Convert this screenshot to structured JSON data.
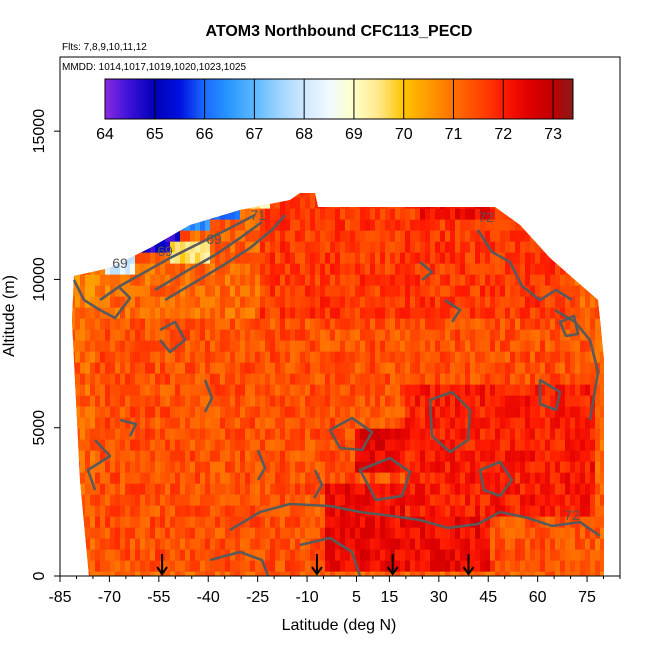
{
  "chart_data": {
    "type": "heatmap",
    "title": "ATOM3 Northbound CFC113_PECD",
    "subtitle_flights": "Flts: 7,8,9,10,11,12",
    "subtitle_dates": "MMDD: 1014,1017,1019,1020,1023,1025",
    "xlabel": "Latitude (deg N)",
    "ylabel": "Altitude (m)",
    "xlim": [
      -85,
      85
    ],
    "ylim": [
      0,
      17500
    ],
    "x_ticks": [
      -85,
      -70,
      -55,
      -40,
      -25,
      -10,
      5,
      15,
      30,
      45,
      60,
      75
    ],
    "y_ticks": [
      0,
      5000,
      10000,
      15000
    ],
    "colorbar": {
      "min": 64,
      "max": 73.4,
      "ticks": [
        "64",
        "65",
        "66",
        "67",
        "68",
        "69",
        "70",
        "71",
        "72",
        "73"
      ],
      "stops": [
        {
          "v": 64.0,
          "c": "#8a2be2"
        },
        {
          "v": 64.5,
          "c": "#3a10d8"
        },
        {
          "v": 65.0,
          "c": "#0000b8"
        },
        {
          "v": 65.5,
          "c": "#0010e0"
        },
        {
          "v": 66.0,
          "c": "#1a6aff"
        },
        {
          "v": 66.5,
          "c": "#2a98ff"
        },
        {
          "v": 67.0,
          "c": "#5cb8ff"
        },
        {
          "v": 67.5,
          "c": "#9dd4ff"
        },
        {
          "v": 68.0,
          "c": "#cfe8ff"
        },
        {
          "v": 68.5,
          "c": "#f0faff"
        },
        {
          "v": 69.0,
          "c": "#ffffc8"
        },
        {
          "v": 69.5,
          "c": "#ffe88a"
        },
        {
          "v": 70.0,
          "c": "#ffc400"
        },
        {
          "v": 70.5,
          "c": "#ff9a00"
        },
        {
          "v": 71.0,
          "c": "#ff7000"
        },
        {
          "v": 71.5,
          "c": "#ff4800"
        },
        {
          "v": 72.0,
          "c": "#ff1a00"
        },
        {
          "v": 72.5,
          "c": "#e00000"
        },
        {
          "v": 73.0,
          "c": "#c00000"
        },
        {
          "v": 73.4,
          "c": "#8b1a1a"
        }
      ]
    },
    "contour_labels": [
      "69",
      "69",
      "69",
      "71",
      "72",
      "72"
    ],
    "regions": [
      {
        "x0": -75,
        "x1": 78,
        "y0": 0,
        "y1": 8500,
        "v": 71.4
      },
      {
        "x0": -80,
        "x1": -25,
        "y0": 8500,
        "y1": 10700,
        "v": 71.1
      },
      {
        "x0": -25,
        "x1": 72,
        "y0": 8500,
        "y1": 12800,
        "v": 71.7
      },
      {
        "x0": -5,
        "x1": 45,
        "y0": 0,
        "y1": 3000,
        "v": 72.3
      },
      {
        "x0": 20,
        "x1": 78,
        "y0": 2000,
        "y1": 6500,
        "v": 72.0
      },
      {
        "x0": 5,
        "x1": 20,
        "y0": 3500,
        "y1": 4800,
        "v": 72.4
      },
      {
        "x0": 25,
        "x1": 45,
        "y0": 12000,
        "y1": 12900,
        "v": 72.3
      },
      {
        "x0": -62,
        "x1": -48,
        "y0": 11000,
        "y1": 12000,
        "v": 64.8
      },
      {
        "x0": -48,
        "x1": -40,
        "y0": 11500,
        "y1": 12400,
        "v": 66.6
      },
      {
        "x0": -72,
        "x1": -62,
        "y0": 10000,
        "y1": 11000,
        "v": 68.2
      },
      {
        "x0": -40,
        "x1": -30,
        "y0": 11900,
        "y1": 12600,
        "v": 66.3
      },
      {
        "x0": -30,
        "x1": -22,
        "y0": 12300,
        "y1": 12900,
        "v": 69.2
      },
      {
        "x0": -52,
        "x1": -40,
        "y0": 10600,
        "y1": 11400,
        "v": 69.6
      },
      {
        "x0": -12,
        "x1": -8,
        "y0": 12500,
        "y1": 13300,
        "v": 71.7
      },
      {
        "x0": -80,
        "x1": -70,
        "y0": 9000,
        "y1": 10200,
        "v": 70.8
      }
    ],
    "profile_arrows_lat": [
      -54,
      -7,
      16,
      39
    ]
  }
}
